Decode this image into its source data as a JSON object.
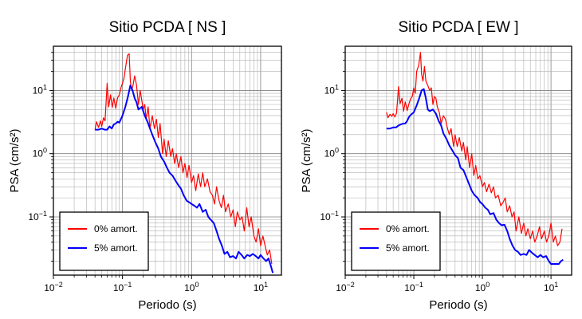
{
  "chart_data": [
    {
      "type": "line",
      "title": "Sitio PCDA [ NS ]",
      "xlabel": "Periodo (s)",
      "ylabel": "PSA (cm/s²)",
      "xscale": "log",
      "yscale": "log",
      "xlim": [
        0.01,
        20
      ],
      "ylim": [
        0.012,
        50
      ],
      "grid": true,
      "legend": "bottom-left",
      "x_ticks": [
        {
          "base": "10",
          "exp": "−2"
        },
        {
          "base": "10",
          "exp": "−1"
        },
        {
          "base": "10",
          "exp": "0"
        },
        {
          "base": "10",
          "exp": "1"
        }
      ],
      "y_ticks": [
        {
          "base": "10",
          "exp": "−1"
        },
        {
          "base": "10",
          "exp": "0"
        },
        {
          "base": "10",
          "exp": "1"
        }
      ],
      "series": [
        {
          "name": "0% amort.",
          "color": "#ff0000",
          "x": [
            0.04,
            0.042,
            0.045,
            0.048,
            0.05,
            0.053,
            0.056,
            0.06,
            0.063,
            0.067,
            0.071,
            0.075,
            0.08,
            0.085,
            0.09,
            0.095,
            0.1,
            0.105,
            0.11,
            0.118,
            0.125,
            0.13,
            0.136,
            0.143,
            0.15,
            0.16,
            0.17,
            0.18,
            0.19,
            0.2,
            0.21,
            0.22,
            0.235,
            0.25,
            0.27,
            0.29,
            0.31,
            0.33,
            0.35,
            0.38,
            0.4,
            0.43,
            0.46,
            0.5,
            0.53,
            0.57,
            0.6,
            0.65,
            0.7,
            0.75,
            0.8,
            0.86,
            0.92,
            1.0,
            1.07,
            1.15,
            1.25,
            1.35,
            1.45,
            1.55,
            1.7,
            1.85,
            2.0,
            2.15,
            2.3,
            2.5,
            2.7,
            2.9,
            3.1,
            3.4,
            3.7,
            4.0,
            4.3,
            4.6,
            5.0,
            5.4,
            5.8,
            6.3,
            6.8,
            7.3,
            8.0,
            8.6,
            9.3,
            10.0,
            10.8,
            11.6,
            12.5,
            13.5,
            14.5
          ],
          "values": [
            2.4,
            3.2,
            2.6,
            3.3,
            2.7,
            3.7,
            3.3,
            13.0,
            5.5,
            8.5,
            5.4,
            7.6,
            5.2,
            7.7,
            8.5,
            11.0,
            13.0,
            15.5,
            22.0,
            36.0,
            38.0,
            14.0,
            10.0,
            12.5,
            17.0,
            12.0,
            6.0,
            10.0,
            7.0,
            5.0,
            6.0,
            3.5,
            5.5,
            2.5,
            4.0,
            2.5,
            3.5,
            1.8,
            3.0,
            1.0,
            1.7,
            0.9,
            1.6,
            0.9,
            1.2,
            0.7,
            1.0,
            0.6,
            0.9,
            0.5,
            0.7,
            0.42,
            0.65,
            0.35,
            0.45,
            0.26,
            0.48,
            0.3,
            0.5,
            0.3,
            0.4,
            0.25,
            0.22,
            0.16,
            0.3,
            0.18,
            0.14,
            0.22,
            0.12,
            0.16,
            0.1,
            0.13,
            0.07,
            0.12,
            0.09,
            0.1,
            0.06,
            0.14,
            0.07,
            0.1,
            0.05,
            0.04,
            0.065,
            0.035,
            0.05,
            0.035,
            0.025,
            0.03,
            0.018
          ]
        },
        {
          "name": "5% amort.",
          "color": "#0000ff",
          "x": [
            0.04,
            0.045,
            0.05,
            0.055,
            0.06,
            0.065,
            0.07,
            0.075,
            0.08,
            0.085,
            0.09,
            0.1,
            0.11,
            0.12,
            0.13,
            0.14,
            0.15,
            0.16,
            0.17,
            0.19,
            0.21,
            0.23,
            0.25,
            0.27,
            0.3,
            0.33,
            0.36,
            0.4,
            0.44,
            0.48,
            0.53,
            0.58,
            0.64,
            0.7,
            0.77,
            0.85,
            0.93,
            1.0,
            1.1,
            1.2,
            1.3,
            1.45,
            1.6,
            1.75,
            1.9,
            2.1,
            2.3,
            2.5,
            2.75,
            3.0,
            3.3,
            3.6,
            4.0,
            4.4,
            4.8,
            5.3,
            5.8,
            6.4,
            7.0,
            7.7,
            8.5,
            9.3,
            10.0,
            11.0,
            12.0,
            13.0,
            14.0,
            15.0
          ],
          "values": [
            2.4,
            2.4,
            2.5,
            2.4,
            2.4,
            2.7,
            2.5,
            2.9,
            3.0,
            3.2,
            3.1,
            4.0,
            5.5,
            8.0,
            12.0,
            10.0,
            7.5,
            6.5,
            5.0,
            5.5,
            4.0,
            3.2,
            2.5,
            2.0,
            1.5,
            1.2,
            0.9,
            0.75,
            0.6,
            0.5,
            0.45,
            0.38,
            0.32,
            0.28,
            0.22,
            0.18,
            0.17,
            0.16,
            0.15,
            0.14,
            0.16,
            0.12,
            0.13,
            0.1,
            0.09,
            0.08,
            0.06,
            0.045,
            0.035,
            0.026,
            0.028,
            0.023,
            0.024,
            0.022,
            0.028,
            0.025,
            0.022,
            0.025,
            0.024,
            0.026,
            0.024,
            0.022,
            0.025,
            0.022,
            0.02,
            0.022,
            0.017,
            0.013
          ]
        }
      ]
    },
    {
      "type": "line",
      "title": "Sitio PCDA [ EW ]",
      "xlabel": "Periodo (s)",
      "ylabel": "PSA (cm/s²)",
      "xscale": "log",
      "yscale": "log",
      "xlim": [
        0.01,
        20
      ],
      "ylim": [
        0.012,
        50
      ],
      "grid": true,
      "legend": "bottom-left",
      "x_ticks": [
        {
          "base": "10",
          "exp": "−2"
        },
        {
          "base": "10",
          "exp": "−1"
        },
        {
          "base": "10",
          "exp": "0"
        },
        {
          "base": "10",
          "exp": "1"
        }
      ],
      "y_ticks": [
        {
          "base": "10",
          "exp": "−1"
        },
        {
          "base": "10",
          "exp": "0"
        },
        {
          "base": "10",
          "exp": "1"
        }
      ],
      "series": [
        {
          "name": "0% amort.",
          "color": "#ff0000",
          "x": [
            0.04,
            0.042,
            0.045,
            0.048,
            0.05,
            0.053,
            0.056,
            0.06,
            0.063,
            0.067,
            0.071,
            0.075,
            0.08,
            0.085,
            0.09,
            0.095,
            0.1,
            0.105,
            0.11,
            0.118,
            0.125,
            0.13,
            0.136,
            0.143,
            0.15,
            0.16,
            0.17,
            0.18,
            0.19,
            0.2,
            0.21,
            0.22,
            0.235,
            0.25,
            0.27,
            0.29,
            0.31,
            0.33,
            0.35,
            0.38,
            0.4,
            0.43,
            0.46,
            0.5,
            0.53,
            0.57,
            0.6,
            0.65,
            0.7,
            0.75,
            0.8,
            0.86,
            0.92,
            1.0,
            1.07,
            1.15,
            1.25,
            1.35,
            1.45,
            1.55,
            1.7,
            1.85,
            2.0,
            2.15,
            2.3,
            2.5,
            2.7,
            2.9,
            3.1,
            3.4,
            3.7,
            4.0,
            4.3,
            4.6,
            5.0,
            5.4,
            5.8,
            6.3,
            6.8,
            7.3,
            8.0,
            8.6,
            9.3,
            10.0,
            10.8,
            11.6,
            12.5,
            13.5,
            14.5
          ],
          "values": [
            4.5,
            3.7,
            4.2,
            3.9,
            4.3,
            3.8,
            4.4,
            11.5,
            6.2,
            7.5,
            4.7,
            6.6,
            4.8,
            6.2,
            7.4,
            8.0,
            11.0,
            9.0,
            20.0,
            25.0,
            40.0,
            18.0,
            14.0,
            24.0,
            14.0,
            12.0,
            10.0,
            11.0,
            6.0,
            8.0,
            7.5,
            5.5,
            4.5,
            3.0,
            4.0,
            3.5,
            2.5,
            2.0,
            2.5,
            1.3,
            2.0,
            1.3,
            1.8,
            1.1,
            1.5,
            0.8,
            1.3,
            0.6,
            1.0,
            0.45,
            0.65,
            0.4,
            0.45,
            0.3,
            0.35,
            0.25,
            0.33,
            0.24,
            0.3,
            0.2,
            0.22,
            0.15,
            0.17,
            0.2,
            0.12,
            0.15,
            0.1,
            0.12,
            0.06,
            0.1,
            0.055,
            0.08,
            0.05,
            0.065,
            0.045,
            0.06,
            0.04,
            0.05,
            0.07,
            0.045,
            0.06,
            0.04,
            0.05,
            0.08,
            0.04,
            0.05,
            0.035,
            0.04,
            0.065
          ]
        },
        {
          "name": "5% amort.",
          "color": "#0000ff",
          "x": [
            0.04,
            0.045,
            0.05,
            0.055,
            0.06,
            0.065,
            0.07,
            0.075,
            0.08,
            0.085,
            0.09,
            0.1,
            0.11,
            0.12,
            0.13,
            0.14,
            0.15,
            0.16,
            0.17,
            0.19,
            0.21,
            0.23,
            0.25,
            0.27,
            0.3,
            0.33,
            0.36,
            0.4,
            0.44,
            0.48,
            0.53,
            0.58,
            0.64,
            0.7,
            0.77,
            0.85,
            0.93,
            1.0,
            1.1,
            1.2,
            1.3,
            1.45,
            1.6,
            1.75,
            1.9,
            2.1,
            2.3,
            2.5,
            2.75,
            3.0,
            3.3,
            3.6,
            4.0,
            4.4,
            4.8,
            5.3,
            5.8,
            6.4,
            7.0,
            7.7,
            8.5,
            9.3,
            10.0,
            11.0,
            12.0,
            13.0,
            14.0,
            15.0
          ],
          "values": [
            2.5,
            2.5,
            2.6,
            2.6,
            2.8,
            2.9,
            3.0,
            3.0,
            3.3,
            3.8,
            4.1,
            4.5,
            5.8,
            7.5,
            10.0,
            10.5,
            7.5,
            5.0,
            4.7,
            5.0,
            4.3,
            3.3,
            2.8,
            2.1,
            1.7,
            1.35,
            1.15,
            0.95,
            0.85,
            0.6,
            0.55,
            0.43,
            0.33,
            0.26,
            0.22,
            0.2,
            0.17,
            0.16,
            0.14,
            0.13,
            0.11,
            0.115,
            0.09,
            0.08,
            0.074,
            0.075,
            0.06,
            0.045,
            0.035,
            0.03,
            0.028,
            0.025,
            0.026,
            0.025,
            0.03,
            0.027,
            0.025,
            0.023,
            0.025,
            0.023,
            0.024,
            0.02,
            0.018,
            0.018,
            0.018,
            0.018,
            0.02,
            0.021
          ]
        }
      ]
    }
  ]
}
